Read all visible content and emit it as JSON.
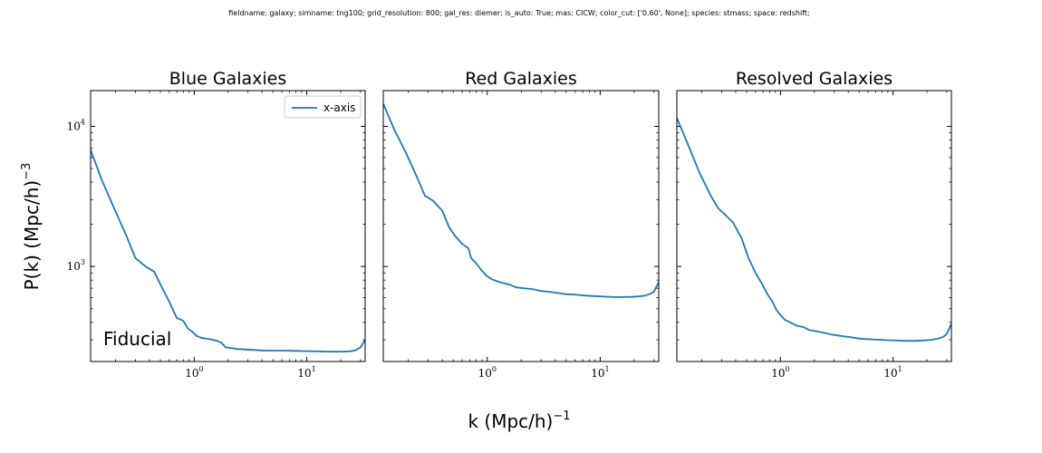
{
  "suptitle": "fieldname: galaxy; simname: tng100; grid_resolution: 800; gal_res: diemer; is_auto: True; mas: CICW; color_cut: ['0.60', None]; species: stmass; space: redshift;",
  "ylabel": {
    "base": "P(k) (Mpc/h)",
    "exp": "−3"
  },
  "xlabel": {
    "base": "k (Mpc/h)",
    "exp": "−1"
  },
  "colors": {
    "line": "#1f77b4",
    "axes": "#000000",
    "background": "#ffffff"
  },
  "chart_data": [
    {
      "type": "line",
      "title": "Blue Galaxies",
      "xscale": "log",
      "yscale": "log",
      "xlim": [
        0.12,
        33
      ],
      "ylim": [
        210,
        18000
      ],
      "xticks": [
        {
          "base": "10",
          "exp": "0",
          "value": 1
        },
        {
          "base": "10",
          "exp": "1",
          "value": 10
        }
      ],
      "yticks": [
        {
          "base": "10",
          "exp": "3",
          "value": 1000
        },
        {
          "base": "10",
          "exp": "4",
          "value": 10000
        }
      ],
      "legend": {
        "location": "upper right",
        "entries": [
          "x-axis"
        ]
      },
      "annotation": "Fiducial",
      "series": [
        {
          "name": "x-axis",
          "x": [
            0.12,
            0.15,
            0.19,
            0.25,
            0.3,
            0.37,
            0.44,
            0.52,
            0.6,
            0.7,
            0.8,
            0.88,
            0.95,
            1.05,
            1.15,
            1.3,
            1.45,
            1.6,
            1.75,
            1.9,
            2.1,
            2.4,
            2.8,
            3.3,
            4,
            5,
            6.5,
            8,
            10,
            13,
            16,
            20,
            24,
            27,
            30,
            33
          ],
          "y": [
            6800,
            4200,
            2700,
            1650,
            1150,
            1000,
            920,
            700,
            560,
            430,
            410,
            360,
            345,
            320,
            310,
            305,
            300,
            295,
            285,
            265,
            262,
            258,
            256,
            254,
            252,
            251,
            251,
            250,
            249,
            248,
            247,
            247,
            248,
            252,
            265,
            300
          ]
        }
      ]
    },
    {
      "type": "line",
      "title": "Red Galaxies",
      "xscale": "log",
      "yscale": "log",
      "xlim": [
        0.12,
        33
      ],
      "ylim": [
        210,
        18000
      ],
      "xticks": [
        {
          "base": "10",
          "exp": "0",
          "value": 1
        },
        {
          "base": "10",
          "exp": "1",
          "value": 10
        }
      ],
      "yticks": [
        {
          "base": "10",
          "exp": "3",
          "value": 1000
        },
        {
          "base": "10",
          "exp": "4",
          "value": 10000
        }
      ],
      "series": [
        {
          "name": "x-axis",
          "x": [
            0.12,
            0.15,
            0.19,
            0.24,
            0.28,
            0.33,
            0.4,
            0.46,
            0.52,
            0.6,
            0.68,
            0.72,
            0.8,
            0.9,
            1.0,
            1.1,
            1.25,
            1.4,
            1.6,
            1.8,
            2.1,
            2.5,
            3,
            3.6,
            4.3,
            5,
            6,
            7.5,
            9,
            11,
            13,
            16,
            19,
            22,
            25,
            28,
            30,
            33
          ],
          "y": [
            14500,
            9500,
            6500,
            4300,
            3200,
            2950,
            2500,
            1900,
            1650,
            1450,
            1350,
            1150,
            1050,
            930,
            850,
            810,
            780,
            760,
            740,
            710,
            700,
            690,
            670,
            660,
            645,
            635,
            630,
            620,
            615,
            610,
            605,
            605,
            607,
            612,
            620,
            640,
            665,
            770
          ]
        }
      ]
    },
    {
      "type": "line",
      "title": "Resolved Galaxies",
      "xscale": "log",
      "yscale": "log",
      "xlim": [
        0.12,
        33
      ],
      "ylim": [
        210,
        18000
      ],
      "xticks": [
        {
          "base": "10",
          "exp": "0",
          "value": 1
        },
        {
          "base": "10",
          "exp": "1",
          "value": 10
        }
      ],
      "yticks": [
        {
          "base": "10",
          "exp": "3",
          "value": 1000
        },
        {
          "base": "10",
          "exp": "4",
          "value": 10000
        }
      ],
      "series": [
        {
          "name": "x-axis",
          "x": [
            0.12,
            0.15,
            0.19,
            0.24,
            0.28,
            0.33,
            0.38,
            0.45,
            0.52,
            0.6,
            0.68,
            0.76,
            0.85,
            0.92,
            1.0,
            1.1,
            1.25,
            1.4,
            1.6,
            1.8,
            2.1,
            2.5,
            3,
            3.6,
            4.3,
            5,
            6,
            7.5,
            9,
            11,
            13,
            16,
            19,
            22,
            25,
            28,
            30,
            33
          ],
          "y": [
            11500,
            7500,
            4700,
            3200,
            2600,
            2300,
            2050,
            1600,
            1150,
            900,
            760,
            640,
            560,
            490,
            450,
            415,
            395,
            378,
            370,
            352,
            345,
            335,
            325,
            318,
            312,
            306,
            303,
            300,
            298,
            296,
            295,
            295,
            297,
            300,
            305,
            315,
            330,
            390
          ]
        }
      ]
    }
  ]
}
